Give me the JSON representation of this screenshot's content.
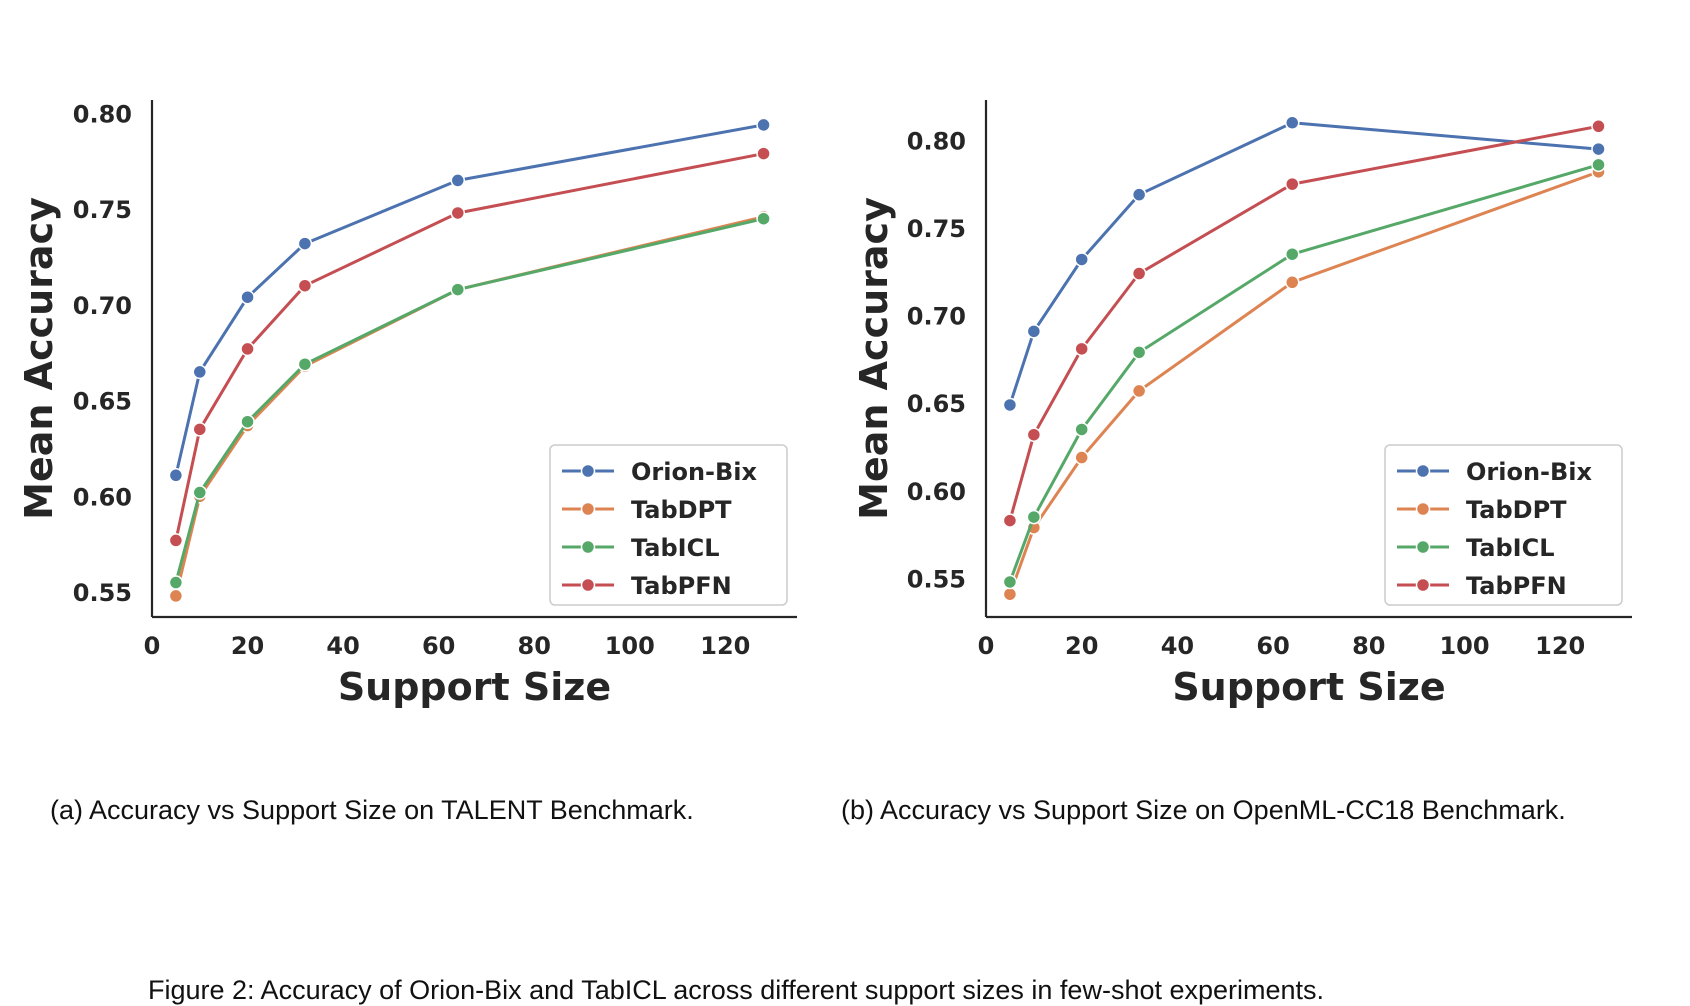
{
  "chart_data": [
    {
      "type": "line",
      "title": "",
      "xlabel": "Support Size",
      "ylabel": "Mean Accuracy",
      "x": [
        5,
        10,
        20,
        32,
        64,
        128
      ],
      "xlim": [
        0,
        135
      ],
      "ylim": [
        0.537,
        0.807
      ],
      "xticks": [
        0,
        20,
        40,
        60,
        80,
        100,
        120
      ],
      "yticks": [
        0.55,
        0.6,
        0.65,
        0.7,
        0.75,
        0.8
      ],
      "legend": "lower-right",
      "series": [
        {
          "name": "Orion-Bix",
          "color": "#4c72b0",
          "values": [
            0.611,
            0.665,
            0.704,
            0.732,
            0.765,
            0.794
          ]
        },
        {
          "name": "TabDPT",
          "color": "#dd8452",
          "values": [
            0.548,
            0.6,
            0.637,
            0.668,
            0.708,
            0.746
          ]
        },
        {
          "name": "TabICL",
          "color": "#55a868",
          "values": [
            0.555,
            0.602,
            0.639,
            0.669,
            0.708,
            0.745
          ]
        },
        {
          "name": "TabPFN",
          "color": "#c44e52",
          "values": [
            0.577,
            0.635,
            0.677,
            0.71,
            0.748,
            0.779
          ]
        }
      ]
    },
    {
      "type": "line",
      "title": "",
      "xlabel": "Support Size",
      "ylabel": "Mean Accuracy",
      "x": [
        5,
        10,
        20,
        32,
        64,
        128
      ],
      "xlim": [
        0,
        135
      ],
      "ylim": [
        0.528,
        0.823
      ],
      "xticks": [
        0,
        20,
        40,
        60,
        80,
        100,
        120
      ],
      "yticks": [
        0.55,
        0.6,
        0.65,
        0.7,
        0.75,
        0.8
      ],
      "legend": "lower-right",
      "series": [
        {
          "name": "Orion-Bix",
          "color": "#4c72b0",
          "values": [
            0.649,
            0.691,
            0.732,
            0.769,
            0.81,
            0.795
          ]
        },
        {
          "name": "TabDPT",
          "color": "#dd8452",
          "values": [
            0.541,
            0.579,
            0.619,
            0.657,
            0.719,
            0.782
          ]
        },
        {
          "name": "TabICL",
          "color": "#55a868",
          "values": [
            0.548,
            0.585,
            0.635,
            0.679,
            0.735,
            0.786
          ]
        },
        {
          "name": "TabPFN",
          "color": "#c44e52",
          "values": [
            0.583,
            0.632,
            0.681,
            0.724,
            0.775,
            0.808
          ]
        }
      ]
    }
  ],
  "captions": {
    "sub_a": "(a) Accuracy vs Support Size on TALENT Benchmark.",
    "sub_b": "(b) Accuracy vs Support Size on OpenML-CC18 Benchmark.",
    "figure": "Figure 2: Accuracy of Orion-Bix and TabICL across different support sizes in few-shot experiments."
  }
}
